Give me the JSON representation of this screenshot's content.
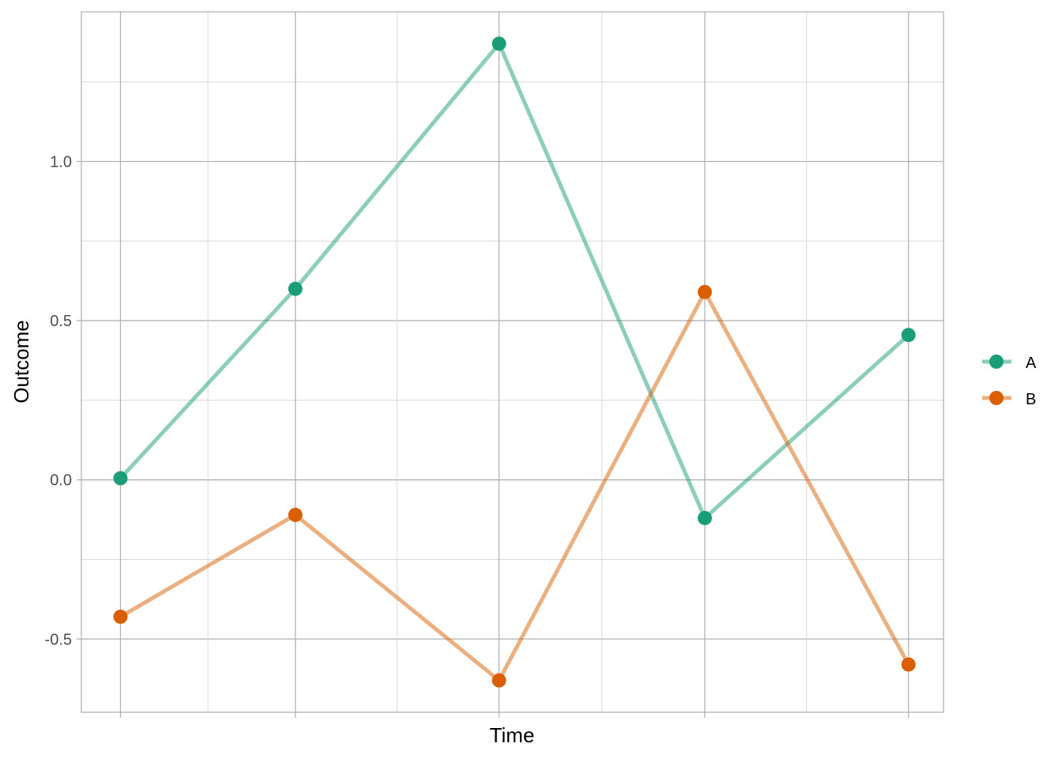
{
  "chart_data": {
    "type": "line",
    "title": "",
    "xlabel": "Time",
    "ylabel": "Outcome",
    "x": [
      1,
      2,
      3,
      4,
      5
    ],
    "xlim": [
      0.81,
      5.0
    ],
    "ylim": [
      -0.73,
      1.47
    ],
    "y_ticks": [
      -0.5,
      0.0,
      0.5,
      1.0
    ],
    "y_tick_labels": [
      "-0.5",
      "0.0",
      "0.5",
      "1.0"
    ],
    "x_tick_labels_shown": false,
    "grid": true,
    "legend_position": "right",
    "series": [
      {
        "name": "A",
        "color": "#1b9e77",
        "x": [
          1.0,
          1.85,
          2.84,
          3.84,
          4.83
        ],
        "values": [
          0.005,
          0.6,
          1.37,
          -0.12,
          0.455
        ]
      },
      {
        "name": "B",
        "color": "#d95f02",
        "x": [
          1.0,
          1.85,
          2.84,
          3.84,
          4.83
        ],
        "values": [
          -0.43,
          -0.11,
          -0.63,
          0.59,
          -0.58
        ]
      }
    ]
  }
}
